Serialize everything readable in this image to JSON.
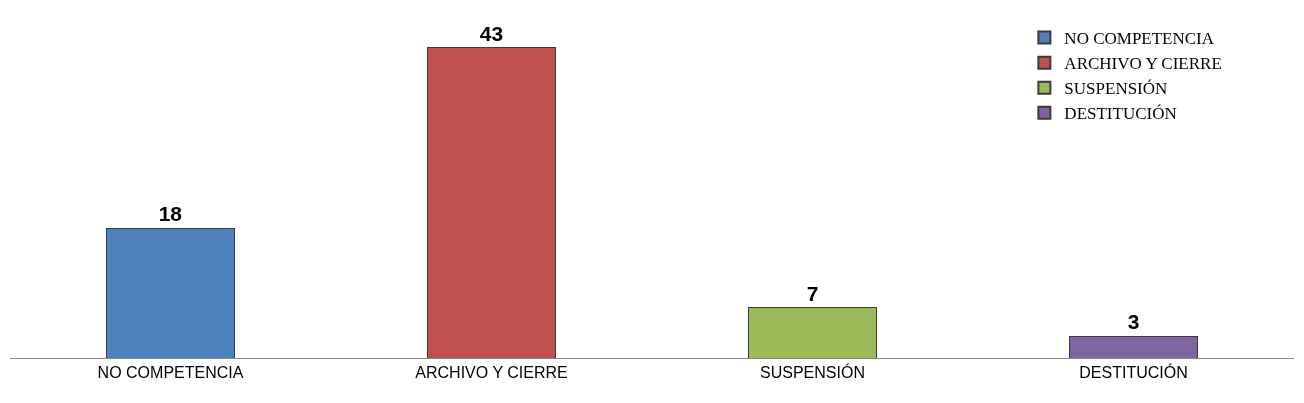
{
  "chart_data": {
    "type": "bar",
    "categories": [
      "NO COMPETENCIA",
      "ARCHIVO Y CIERRE",
      "SUSPENSIÓN",
      "DESTITUCIÓN"
    ],
    "stacked": true,
    "series": [
      {
        "name": "NO COMPETENCIA",
        "color": "#4f81bd",
        "values": [
          18,
          null,
          null,
          null
        ]
      },
      {
        "name": "ARCHIVO Y CIERRE",
        "color": "#c0504d",
        "values": [
          null,
          43,
          null,
          null
        ]
      },
      {
        "name": "SUSPENSIÓN",
        "color": "#9bbb59",
        "values": [
          null,
          null,
          7,
          null
        ]
      },
      {
        "name": "DESTITUCIÓN",
        "color": "#8064a2",
        "values": [
          null,
          null,
          null,
          3
        ]
      }
    ],
    "data_labels": true,
    "legend": "top right"
  }
}
